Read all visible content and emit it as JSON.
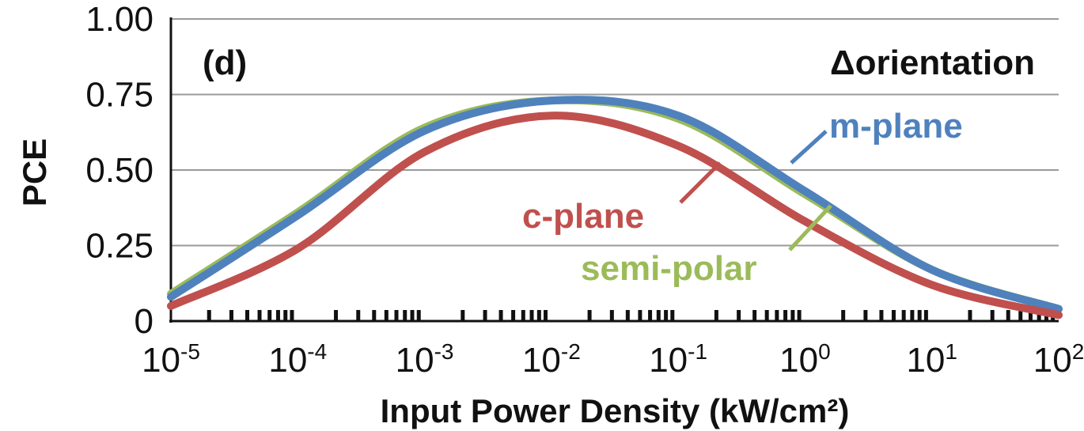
{
  "chart_data": {
    "type": "line",
    "x_scale": "log",
    "xlim": [
      1e-05,
      100
    ],
    "ylim": [
      0,
      1
    ],
    "xlabel": "Input Power Density (kW/cm²)",
    "ylabel": "PCE",
    "panel_label": "(d)",
    "annotation": "Δorientation",
    "grid": "horizontal",
    "y_ticks": [
      "0",
      "0.25",
      "0.50",
      "0.75",
      "1.00"
    ],
    "x_ticks": [
      {
        "base": "10",
        "exp": "-5"
      },
      {
        "base": "10",
        "exp": "-4"
      },
      {
        "base": "10",
        "exp": "-3"
      },
      {
        "base": "10",
        "exp": "-2"
      },
      {
        "base": "10",
        "exp": "-1"
      },
      {
        "base": "10",
        "exp": "0"
      },
      {
        "base": "10",
        "exp": "1"
      },
      {
        "base": "10",
        "exp": "2"
      }
    ],
    "x": [
      1e-05,
      0.0001,
      0.001,
      0.01,
      0.1,
      1,
      10,
      100
    ],
    "series": [
      {
        "name": "semi-polar",
        "color": "#9bbb59",
        "values": [
          0.09,
          0.36,
          0.64,
          0.73,
          0.67,
          0.42,
          0.17,
          0.04
        ]
      },
      {
        "name": "m-plane",
        "color": "#4f81bd",
        "values": [
          0.08,
          0.35,
          0.63,
          0.73,
          0.68,
          0.43,
          0.17,
          0.04
        ]
      },
      {
        "name": "c-plane",
        "color": "#c0504d",
        "values": [
          0.05,
          0.24,
          0.56,
          0.68,
          0.58,
          0.33,
          0.12,
          0.02
        ]
      }
    ]
  }
}
